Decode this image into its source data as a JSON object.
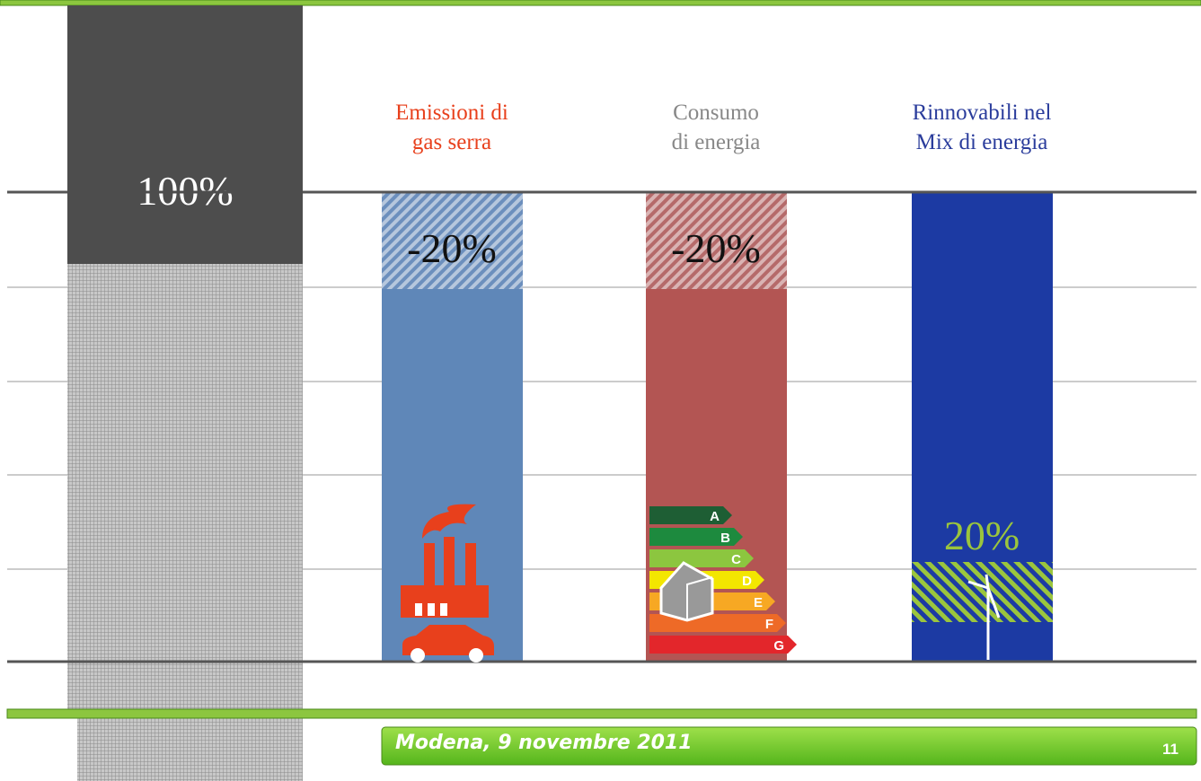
{
  "baseline_label": "100%",
  "columns": [
    {
      "title": [
        "Emissioni di",
        "gas serra"
      ],
      "label": "-20%"
    },
    {
      "title": [
        "Consumo",
        "di energia"
      ],
      "label": "-20%"
    },
    {
      "title": [
        "Rinnovabili nel",
        "Mix di energia"
      ],
      "label": "20%"
    }
  ],
  "energy_classes": [
    "A",
    "B",
    "C",
    "D",
    "E",
    "F",
    "G"
  ],
  "footer": {
    "text": "Modena, 9 novembre 2011",
    "page": "11"
  }
}
